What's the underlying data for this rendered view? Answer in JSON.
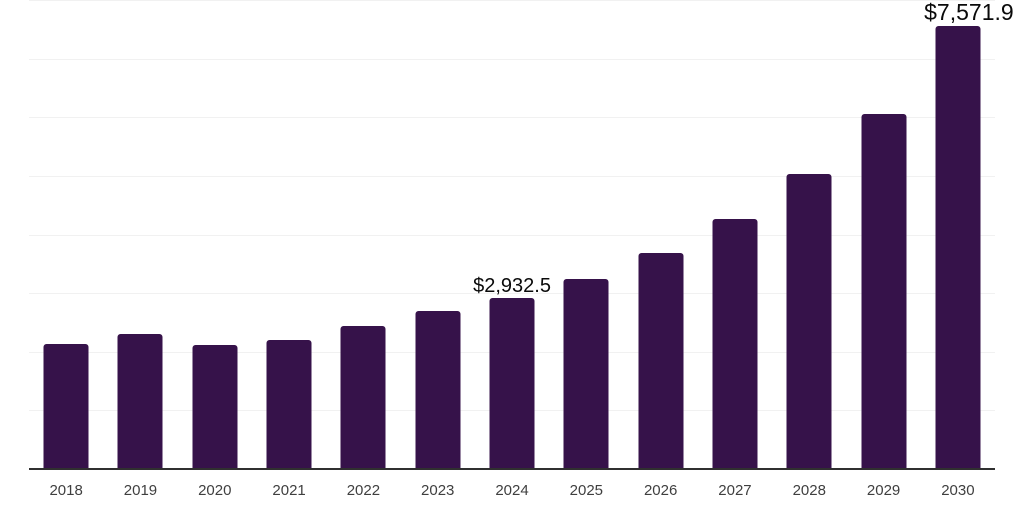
{
  "chart_data": {
    "type": "bar",
    "title": "",
    "xlabel": "",
    "ylabel": "",
    "categories": [
      "2018",
      "2019",
      "2020",
      "2021",
      "2022",
      "2023",
      "2024",
      "2025",
      "2026",
      "2027",
      "2028",
      "2029",
      "2030"
    ],
    "values": [
      2150,
      2320,
      2140,
      2215,
      2450,
      2720,
      2932.5,
      3260,
      3705,
      4275,
      5055,
      6075,
      7571.9
    ],
    "data_labels": {
      "2024": "$2,932.5",
      "2030": "$7,571.9"
    },
    "ylim": [
      0,
      8000
    ],
    "gridline_step": 1000,
    "grid": true,
    "legend": false,
    "y_axis_labels_visible": false,
    "colors": {
      "bar": "#36124a",
      "axis": "#303030",
      "gridline": "#f1f1f1",
      "tick_label": "#3f3f3f",
      "data_label": "#0a0a0a",
      "background": "#ffffff"
    }
  }
}
